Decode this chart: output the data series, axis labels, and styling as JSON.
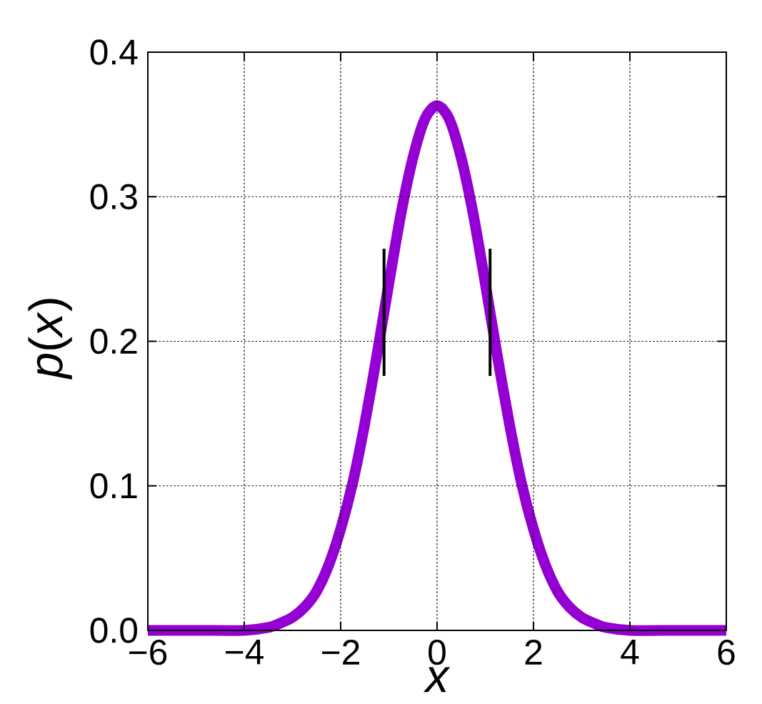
{
  "chart_data": {
    "type": "line",
    "xlabel": "x",
    "ylabel": "*p*(*x*)",
    "xlim": [
      -6,
      6
    ],
    "ylim": [
      0,
      0.4
    ],
    "xticks": [
      {
        "value": -6,
        "label": "−6"
      },
      {
        "value": -4,
        "label": "−4"
      },
      {
        "value": -2,
        "label": "−2"
      },
      0,
      2,
      4,
      6
    ],
    "yticks": [
      {
        "value": 0,
        "label": "0.0"
      },
      0.1,
      0.2,
      0.3,
      0.4
    ],
    "grid": true,
    "series": [
      {
        "color": "#9400d3",
        "x": [
          -6,
          -5,
          -4,
          -3.5,
          -3.25,
          -3,
          -2.75,
          -2.5,
          -2.25,
          -2,
          -1.75,
          -1.5,
          -1.25,
          -1,
          -0.75,
          -0.5,
          -0.25,
          0,
          0.25,
          0.5,
          0.75,
          1,
          1.25,
          1.5,
          1.75,
          2,
          2.25,
          2.5,
          2.75,
          3,
          3.25,
          3.5,
          4,
          5,
          6
        ],
        "values": [
          0,
          0,
          0,
          0.002,
          0.005,
          0.009,
          0.016,
          0.027,
          0.045,
          0.07,
          0.102,
          0.143,
          0.19,
          0.24,
          0.288,
          0.327,
          0.354,
          0.363,
          0.354,
          0.327,
          0.288,
          0.24,
          0.19,
          0.143,
          0.102,
          0.07,
          0.045,
          0.027,
          0.016,
          0.009,
          0.005,
          0.002,
          0,
          0,
          0
        ]
      },
      {
        "color": "#000000",
        "x": [
          -1.1,
          -1.1
        ],
        "values": [
          0.176,
          0.264
        ]
      },
      {
        "color": "#000000",
        "x": [
          1.1,
          1.1
        ],
        "values": [
          0.176,
          0.264
        ]
      }
    ]
  }
}
